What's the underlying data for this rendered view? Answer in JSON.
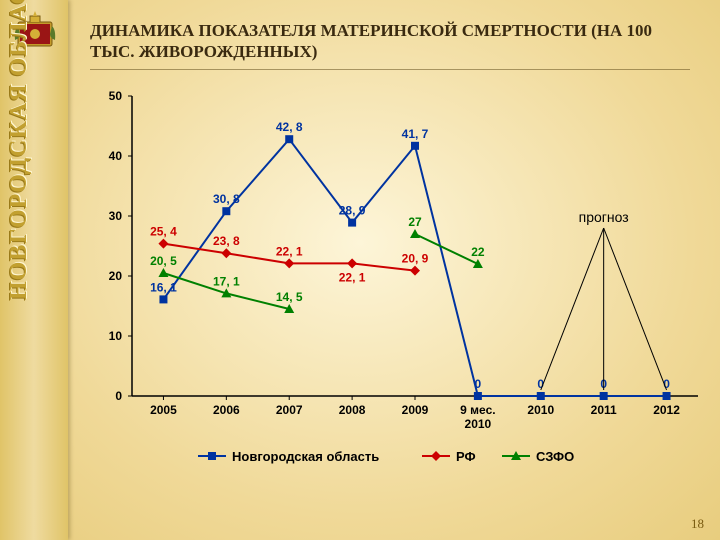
{
  "side_text": "НОВГОРОДСКАЯ ОБЛАСТЬ",
  "title": "ДИНАМИКА ПОКАЗАТЕЛЯ МАТЕРИНСКОЙ СМЕРТНОСТИ (НА 100 ТЫС. ЖИВОРОЖДЕННЫХ)",
  "page_number": "18",
  "forecast_label": "прогноз",
  "chart": {
    "type": "line",
    "categories": [
      "2005",
      "2006",
      "2007",
      "2008",
      "2009",
      "9 мес. 2010",
      "2010",
      "2011",
      "2012"
    ],
    "ylim": [
      0,
      50
    ],
    "ytick_step": 10,
    "axis_color": "#000000",
    "axis_fontsize": 12,
    "axis_fontweight": "bold",
    "value_label_fontsize": 12,
    "series": [
      {
        "name": "Новгородская область",
        "color": "#0033a0",
        "marker": "square",
        "values": [
          16.1,
          30.8,
          42.8,
          28.9,
          41.7,
          0,
          0,
          0,
          0
        ]
      },
      {
        "name": "РФ",
        "color": "#cc0000",
        "marker": "diamond",
        "values": [
          25.4,
          23.8,
          22.1,
          22.1,
          20.9,
          null,
          null,
          null,
          null
        ]
      },
      {
        "name": "СЗФО",
        "color": "#008000",
        "marker": "triangle",
        "values": [
          20.5,
          17.1,
          14.5,
          null,
          27.0,
          22.0,
          null,
          null,
          null
        ]
      }
    ],
    "legend_items": [
      {
        "label": "Новгородская область",
        "color": "#0033a0",
        "marker": "square"
      },
      {
        "label": "РФ",
        "color": "#cc0000",
        "marker": "diamond"
      },
      {
        "label": "СЗФО",
        "color": "#008000",
        "marker": "triangle"
      }
    ]
  }
}
